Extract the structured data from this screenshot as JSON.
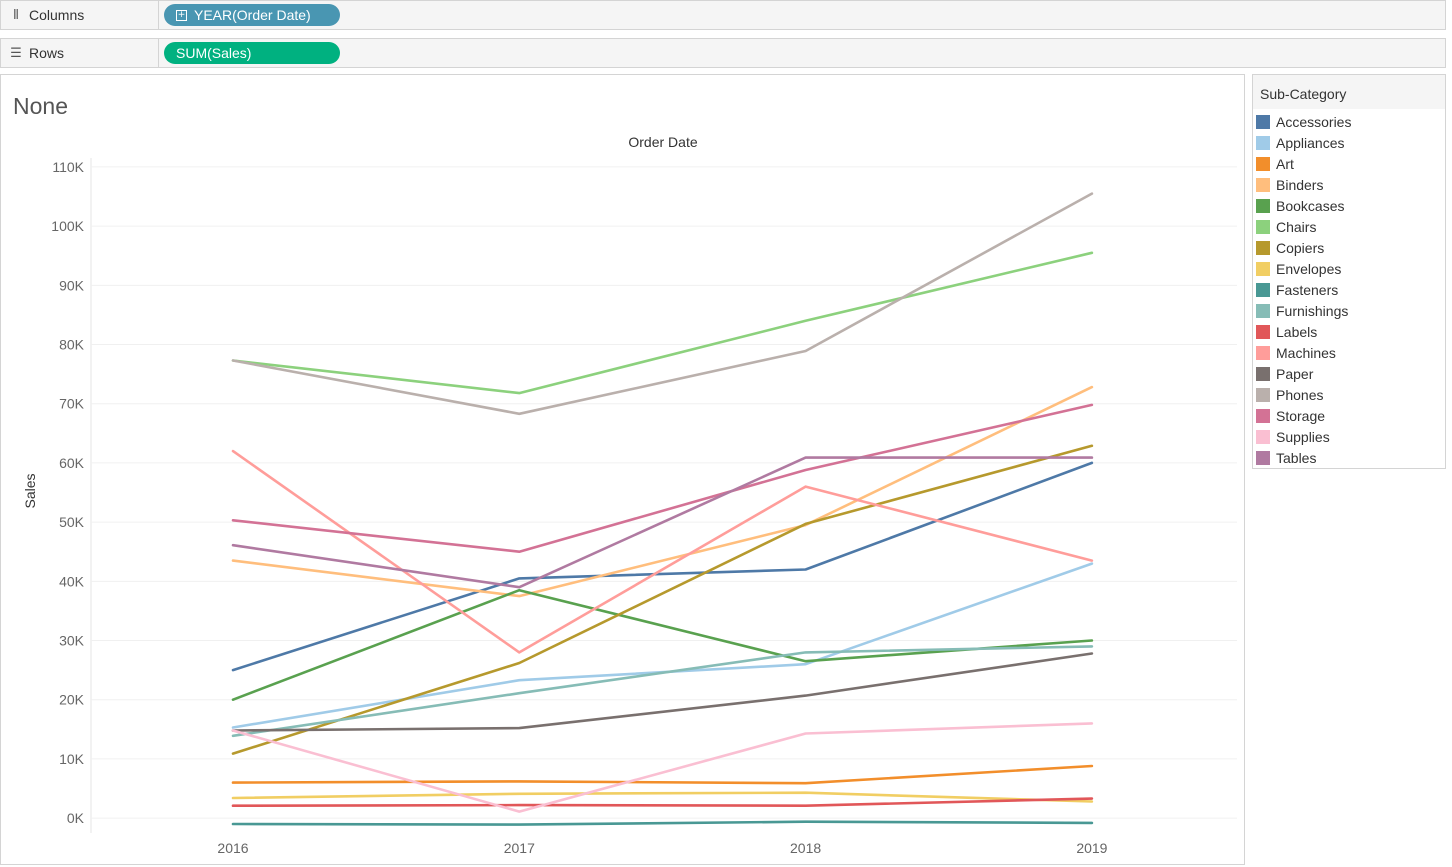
{
  "shelves": {
    "columns": {
      "label": "Columns",
      "icon": "columns-icon",
      "pill": "YEAR(Order Date)",
      "pill_color": "#4996b2"
    },
    "rows": {
      "label": "Rows",
      "icon": "rows-icon",
      "pill": "SUM(Sales)",
      "pill_color": "#00b180"
    }
  },
  "sheet": {
    "title": "None"
  },
  "legend": {
    "title": "Sub-Category"
  },
  "chart_data": {
    "type": "line",
    "title": "",
    "column_header": "Order Date",
    "xlabel": "",
    "ylabel": "Sales",
    "categories": [
      "2016",
      "2017",
      "2018",
      "2019"
    ],
    "y_ticks": [
      0,
      10000,
      20000,
      30000,
      40000,
      50000,
      60000,
      70000,
      80000,
      90000,
      100000,
      110000
    ],
    "y_tick_labels": [
      "0K",
      "10K",
      "20K",
      "30K",
      "40K",
      "50K",
      "60K",
      "70K",
      "80K",
      "90K",
      "100K",
      "110K"
    ],
    "ylim": [
      -1500,
      111000
    ],
    "grid": true,
    "legend_position": "right",
    "series": [
      {
        "name": "Accessories",
        "color": "#4e79a7",
        "values": [
          25000,
          40500,
          42000,
          60000
        ]
      },
      {
        "name": "Appliances",
        "color": "#a0cbe8",
        "values": [
          15300,
          23300,
          26000,
          43000
        ]
      },
      {
        "name": "Art",
        "color": "#f28e2b",
        "values": [
          6000,
          6200,
          5900,
          8800
        ]
      },
      {
        "name": "Binders",
        "color": "#ffbe7d",
        "values": [
          43500,
          37500,
          49500,
          72800
        ]
      },
      {
        "name": "Bookcases",
        "color": "#59a14f",
        "values": [
          20000,
          38500,
          26500,
          30000
        ]
      },
      {
        "name": "Chairs",
        "color": "#8cd17d",
        "values": [
          77300,
          71800,
          84000,
          95500
        ]
      },
      {
        "name": "Copiers",
        "color": "#b6992d",
        "values": [
          10900,
          26200,
          49700,
          62900
        ]
      },
      {
        "name": "Envelopes",
        "color": "#f1ce63",
        "values": [
          3400,
          4100,
          4300,
          2800
        ]
      },
      {
        "name": "Fasteners",
        "color": "#499894",
        "values": [
          -1000,
          -1100,
          -600,
          -800
        ]
      },
      {
        "name": "Furnishings",
        "color": "#86bcb6",
        "values": [
          13900,
          21100,
          28000,
          29000
        ]
      },
      {
        "name": "Labels",
        "color": "#e15759",
        "values": [
          2100,
          2200,
          2100,
          3300
        ]
      },
      {
        "name": "Machines",
        "color": "#ff9d9a",
        "values": [
          62000,
          28000,
          56000,
          43500
        ]
      },
      {
        "name": "Paper",
        "color": "#79706e",
        "values": [
          14800,
          15200,
          20700,
          27800
        ]
      },
      {
        "name": "Phones",
        "color": "#bab0ac",
        "values": [
          77300,
          68300,
          78900,
          105500
        ]
      },
      {
        "name": "Storage",
        "color": "#d37295",
        "values": [
          50300,
          45000,
          58800,
          69800
        ]
      },
      {
        "name": "Supplies",
        "color": "#fabfd2",
        "values": [
          14800,
          1100,
          14300,
          16000
        ]
      },
      {
        "name": "Tables",
        "color": "#b07aa1",
        "values": [
          46100,
          39000,
          60900,
          60900
        ]
      }
    ]
  }
}
